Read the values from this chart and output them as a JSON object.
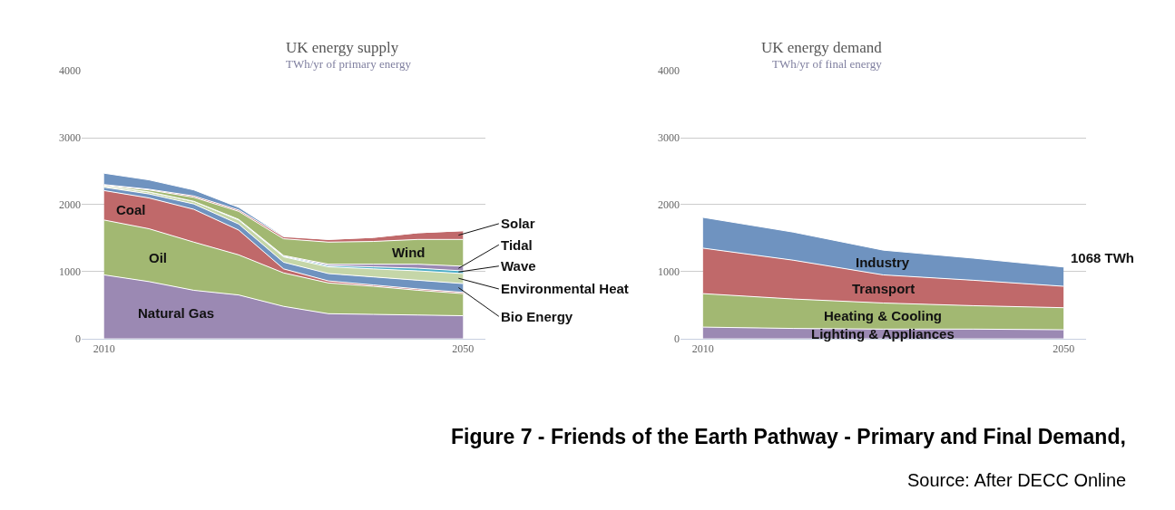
{
  "chart_data": [
    {
      "type": "area",
      "stacked": true,
      "title": "UK energy supply",
      "subtitle": "TWh/yr of primary energy",
      "x": [
        2010,
        2015,
        2020,
        2025,
        2030,
        2035,
        2040,
        2045,
        2050
      ],
      "series": [
        {
          "name": "Natural Gas",
          "color": "#9b89b3",
          "values": [
            950,
            850,
            720,
            650,
            480,
            370,
            360,
            350,
            340
          ]
        },
        {
          "name": "Oil",
          "color": "#a2b872",
          "values": [
            820,
            790,
            720,
            600,
            500,
            460,
            420,
            370,
            330
          ]
        },
        {
          "name": "Coal",
          "color": "#c0696a",
          "values": [
            440,
            460,
            490,
            370,
            60,
            30,
            20,
            20,
            20
          ]
        },
        {
          "name": "Bio Energy",
          "color": "#6f93c0",
          "values": [
            50,
            60,
            80,
            90,
            100,
            110,
            120,
            130,
            130
          ]
        },
        {
          "name": "Environmental Heat",
          "color": "#c5d6a8",
          "values": [
            20,
            30,
            40,
            60,
            80,
            100,
            120,
            140,
            150
          ]
        },
        {
          "name": "Wave",
          "color": "#4bacc6",
          "values": [
            0,
            0,
            0,
            10,
            10,
            20,
            30,
            40,
            40
          ]
        },
        {
          "name": "Tidal",
          "color": "#9b89b3",
          "values": [
            0,
            0,
            0,
            0,
            10,
            20,
            40,
            60,
            70
          ]
        },
        {
          "name": "Wind",
          "color": "#a2b872",
          "values": [
            10,
            30,
            60,
            120,
            250,
            330,
            340,
            370,
            400
          ]
        },
        {
          "name": "Solar",
          "color": "#c0696a",
          "values": [
            10,
            10,
            20,
            20,
            30,
            40,
            60,
            100,
            130
          ]
        },
        {
          "color": "#6f93c0",
          "values": [
            170,
            140,
            90,
            40,
            10,
            0,
            0,
            0,
            0
          ]
        }
      ],
      "xlim": [
        2007.5,
        2052.5
      ],
      "xticks": [
        2010,
        2050
      ],
      "ylim": [
        0,
        4000
      ],
      "yticks": [
        0,
        1000,
        2000,
        3000,
        4000
      ],
      "grid": "y"
    },
    {
      "type": "area",
      "stacked": true,
      "title": "UK energy demand",
      "subtitle": "TWh/yr of final energy",
      "x": [
        2010,
        2020,
        2030,
        2040,
        2050
      ],
      "series": [
        {
          "name": "Lighting & Appliances",
          "color": "#9b89b3",
          "values": [
            170,
            150,
            140,
            140,
            130
          ]
        },
        {
          "name": "Heating & Cooling",
          "color": "#a2b872",
          "values": [
            500,
            440,
            390,
            350,
            330
          ]
        },
        {
          "name": "Transport",
          "color": "#c0696a",
          "values": [
            680,
            580,
            420,
            380,
            320
          ]
        },
        {
          "name": "Industry",
          "color": "#6f93c0",
          "values": [
            460,
            420,
            370,
            330,
            288
          ]
        }
      ],
      "xlim": [
        2007.5,
        2052.5
      ],
      "xticks": [
        2010,
        2050
      ],
      "ylim": [
        0,
        4000
      ],
      "yticks": [
        0,
        1000,
        2000,
        3000,
        4000
      ],
      "grid": "y",
      "annotations": [
        {
          "text": "1068 TWh",
          "x": 2050,
          "y": 1068
        },
        "Figure 7 - Friends of the Earth Pathway - Primary and Final Demand,",
        "Source: After DECC Online"
      ]
    }
  ]
}
